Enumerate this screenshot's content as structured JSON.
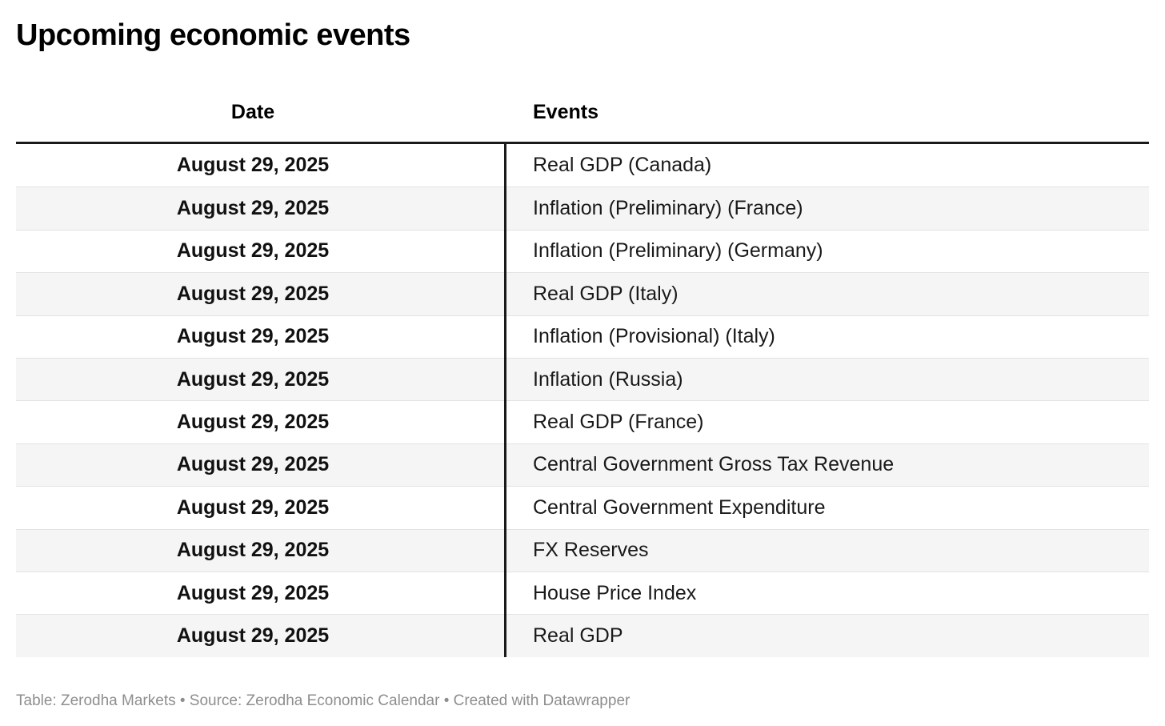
{
  "title": "Upcoming economic events",
  "chart_data": {
    "type": "table",
    "title": "Upcoming economic events",
    "columns": [
      "Date",
      "Events"
    ],
    "rows": [
      [
        "August 29, 2025",
        "Real GDP (Canada)"
      ],
      [
        "August 29, 2025",
        "Inflation (Preliminary) (France)"
      ],
      [
        "August 29, 2025",
        "Inflation (Preliminary) (Germany)"
      ],
      [
        "August 29, 2025",
        "Real GDP (Italy)"
      ],
      [
        "August 29, 2025",
        "Inflation (Provisional) (Italy)"
      ],
      [
        "August 29, 2025",
        "Inflation (Russia)"
      ],
      [
        "August 29, 2025",
        "Real GDP (France)"
      ],
      [
        "August 29, 2025",
        "Central Government Gross Tax Revenue"
      ],
      [
        "August 29, 2025",
        "Central Government Expenditure"
      ],
      [
        "August 29, 2025",
        "FX Reserves"
      ],
      [
        "August 29, 2025",
        "House Price Index"
      ],
      [
        "August 29, 2025",
        "Real GDP"
      ]
    ],
    "layout_hints": {
      "striped_rows": true,
      "stripe_start": "white",
      "date_column_align": "center",
      "events_column_align": "left"
    }
  },
  "footer": {
    "text": "Table: Zerodha Markets • Source: Zerodha Economic Calendar • Created with Datawrapper"
  },
  "colors": {
    "heavy_border": "#1a1a1a",
    "row_stripe": "#f5f5f5",
    "row_separator": "#e3e3e3",
    "footer_text": "#8e8e8e",
    "background": "#ffffff"
  }
}
